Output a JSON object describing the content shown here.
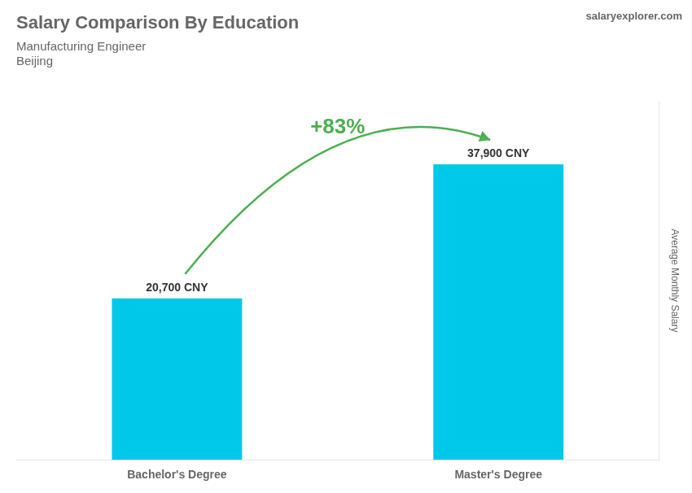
{
  "chart_data": {
    "type": "bar",
    "title": "Salary Comparison By Education",
    "subtitle": [
      "Manufacturing Engineer",
      "Beijing"
    ],
    "categories": [
      "Bachelor's Degree",
      "Master's Degree"
    ],
    "values": [
      20700,
      37900
    ],
    "value_labels": [
      "20,700 CNY",
      "37,900 CNY"
    ],
    "data_labels": true,
    "color": "#00C8E8",
    "ylabel": "Average Monthly Salary",
    "ylim": [
      0,
      46000
    ],
    "tick_labels": "x",
    "grid": false,
    "annotations": [
      {
        "text": "+83%",
        "from": "Bachelor's Degree",
        "to": "Master's Degree"
      },
      {
        "text": "salaryexplorer.com"
      }
    ]
  }
}
